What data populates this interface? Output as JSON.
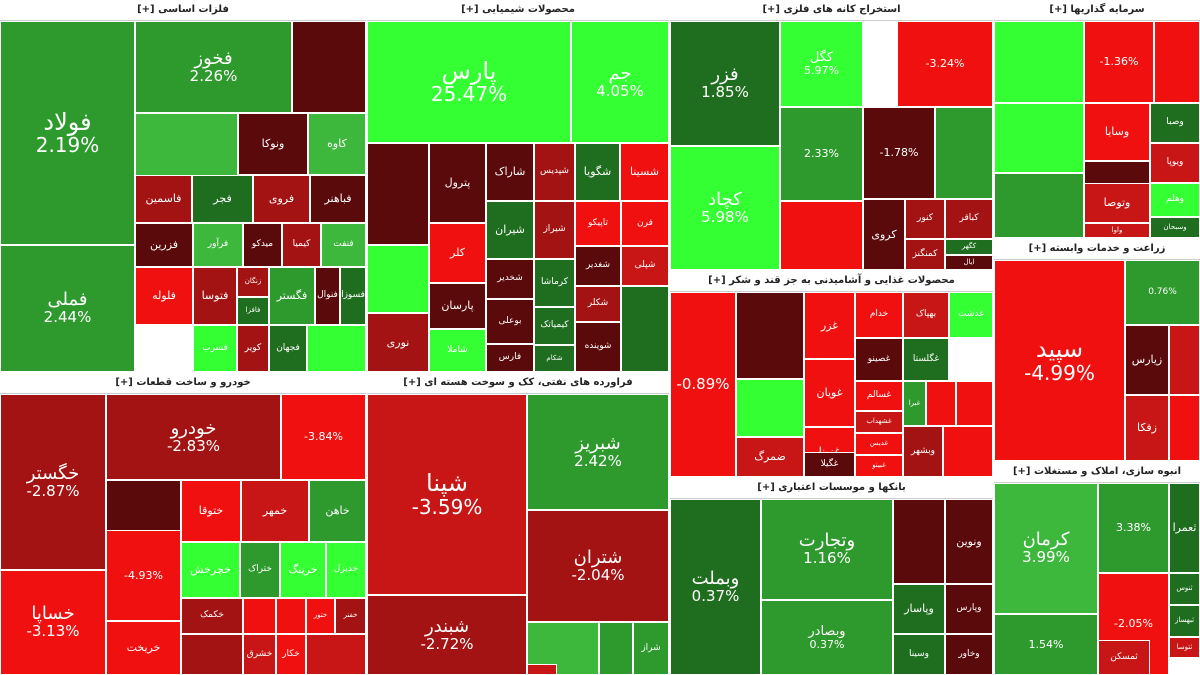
{
  "colors": {
    "dg": "#1f6e1f",
    "g": "#2e9a2e",
    "lg": "#3db83d",
    "bg": "#33ff33",
    "dr": "#5a0a0a",
    "r": "#a31313",
    "mr": "#c81616",
    "br": "#f01010",
    "background": "#ffffff",
    "title_text": "#222222"
  },
  "sectors": [
    {
      "title": "فلزات اساسی [+]",
      "tiles": [
        {
          "n": "فولاد",
          "p": "2.19%",
          "c": "g"
        },
        {
          "n": "فملی",
          "p": "2.44%",
          "c": "g"
        },
        {
          "n": "فخوز",
          "p": "2.26%",
          "c": "g"
        },
        {
          "n": "",
          "p": "",
          "c": "dr"
        },
        {
          "n": "",
          "p": "",
          "c": "lg"
        },
        {
          "n": "ونوکا",
          "p": "",
          "c": "dr"
        },
        {
          "n": "کاوه",
          "p": "",
          "c": "lg"
        },
        {
          "n": "فاسمین",
          "p": "",
          "c": "r"
        },
        {
          "n": "فجر",
          "p": "",
          "c": "dg"
        },
        {
          "n": "فروی",
          "p": "",
          "c": "r"
        },
        {
          "n": "فباهنر",
          "p": "",
          "c": "dr"
        },
        {
          "n": "فزرین",
          "p": "",
          "c": "dr"
        },
        {
          "n": "فرآور",
          "p": "",
          "c": "lg"
        },
        {
          "n": "میدکو",
          "p": "",
          "c": "dr"
        },
        {
          "n": "کیمیا",
          "p": "",
          "c": "r"
        },
        {
          "n": "فنفت",
          "p": "",
          "c": "lg"
        },
        {
          "n": "فلوله",
          "p": "",
          "c": "br"
        },
        {
          "n": "فتوسا",
          "p": "",
          "c": "r"
        },
        {
          "n": "زنگان",
          "p": "",
          "c": "r"
        },
        {
          "n": "فافزا",
          "p": "",
          "c": "dg"
        },
        {
          "n": "فگستر",
          "p": "",
          "c": "g"
        },
        {
          "n": "فنوال",
          "p": "",
          "c": "dr"
        },
        {
          "n": "فسوزا",
          "p": "",
          "c": "dg"
        },
        {
          "n": "فسرب",
          "p": "",
          "c": "bg"
        },
        {
          "n": "کویر",
          "p": "",
          "c": "r"
        },
        {
          "n": "فجهان",
          "p": "",
          "c": "dg"
        },
        {
          "n": "",
          "p": "",
          "c": "bg"
        }
      ]
    },
    {
      "title": "محصولات شیمیایی [+]",
      "tiles": [
        {
          "n": "پارس",
          "p": "25.47%",
          "c": "bg"
        },
        {
          "n": "جم",
          "p": "4.05%",
          "c": "bg"
        },
        {
          "n": "",
          "p": "",
          "c": "dr"
        },
        {
          "n": "پترول",
          "p": "",
          "c": "dr"
        },
        {
          "n": "شاراک",
          "p": "",
          "c": "dr"
        },
        {
          "n": "شپدیس",
          "p": "",
          "c": "r"
        },
        {
          "n": "شگویا",
          "p": "",
          "c": "dg"
        },
        {
          "n": "شسینا",
          "p": "",
          "c": "br"
        },
        {
          "n": "شیران",
          "p": "",
          "c": "dg"
        },
        {
          "n": "شیراز",
          "p": "",
          "c": "r"
        },
        {
          "n": "تاپیکو",
          "p": "",
          "c": "br"
        },
        {
          "n": "فرن",
          "p": "",
          "c": "br"
        },
        {
          "n": "",
          "p": "",
          "c": "bg"
        },
        {
          "n": "کلر",
          "p": "",
          "c": "br"
        },
        {
          "n": "شخدیر",
          "p": "",
          "c": "dr"
        },
        {
          "n": "کرماشا",
          "p": "",
          "c": "dg"
        },
        {
          "n": "شغدیر",
          "p": "",
          "c": "dr"
        },
        {
          "n": "شپلی",
          "p": "",
          "c": "mr"
        },
        {
          "n": "پارسان",
          "p": "",
          "c": "dr"
        },
        {
          "n": "بوعلی",
          "p": "",
          "c": "dr"
        },
        {
          "n": "کیمیاتک",
          "p": "",
          "c": "dg"
        },
        {
          "n": "شکلر",
          "p": "",
          "c": "r"
        },
        {
          "n": "نوری",
          "p": "",
          "c": "r"
        },
        {
          "n": "شاملا",
          "p": "",
          "c": "bg"
        },
        {
          "n": "فارس",
          "p": "",
          "c": "dr"
        },
        {
          "n": "شکام",
          "p": "",
          "c": "dg"
        },
        {
          "n": "شوینده",
          "p": "",
          "c": "dr"
        },
        {
          "n": "",
          "p": "",
          "c": "dg"
        }
      ]
    },
    {
      "title": "استخراج کانه های فلزی [+]",
      "tiles": [
        {
          "n": "فزر",
          "p": "1.85%",
          "c": "dg"
        },
        {
          "n": "کچاد",
          "p": "5.98%",
          "c": "bg"
        },
        {
          "n": "کگل",
          "p": "5.97%",
          "c": "bg"
        },
        {
          "n": "",
          "p": "-3.24%",
          "c": "br"
        },
        {
          "n": "",
          "p": "2.33%",
          "c": "g"
        },
        {
          "n": "",
          "p": "-1.78%",
          "c": "dr"
        },
        {
          "n": "",
          "p": "",
          "c": "g"
        },
        {
          "n": "",
          "p": "",
          "c": "br"
        },
        {
          "n": "کروی",
          "p": "",
          "c": "dr"
        },
        {
          "n": "کنور",
          "p": "",
          "c": "r"
        },
        {
          "n": "کباقر",
          "p": "",
          "c": "r"
        },
        {
          "n": "کگهر",
          "p": "",
          "c": "dg"
        },
        {
          "n": "کمنگنز",
          "p": "",
          "c": "r"
        },
        {
          "n": "ایال",
          "p": "",
          "c": "dr"
        }
      ]
    },
    {
      "title": "سرمایه گذاریها [+]",
      "tiles": [
        {
          "n": "",
          "p": "",
          "c": "bg"
        },
        {
          "n": "",
          "p": "-1.36%",
          "c": "br"
        },
        {
          "n": "",
          "p": "",
          "c": "br"
        },
        {
          "n": "وسایا",
          "p": "",
          "c": "br"
        },
        {
          "n": "وصبا",
          "p": "",
          "c": "dg"
        },
        {
          "n": "",
          "p": "",
          "c": "bg"
        },
        {
          "n": "ویوپا",
          "p": "",
          "c": "mr"
        },
        {
          "n": "",
          "p": "",
          "c": "dr"
        },
        {
          "n": "وتوصا",
          "p": "",
          "c": "mr"
        },
        {
          "n": "وهلم",
          "p": "",
          "c": "bg"
        },
        {
          "n": "",
          "p": "",
          "c": "g"
        },
        {
          "n": "وسبحان",
          "p": "",
          "c": "dg"
        },
        {
          "n": "واوا",
          "p": "",
          "c": "mr"
        }
      ]
    },
    {
      "title": "زراعت و خدمات وابسته [+]",
      "tiles": [
        {
          "n": "سپید",
          "p": "-4.99%",
          "c": "br"
        },
        {
          "n": "",
          "p": "0.76%",
          "c": "g"
        },
        {
          "n": "زیارس",
          "p": "",
          "c": "dr"
        },
        {
          "n": "",
          "p": "",
          "c": "mr"
        },
        {
          "n": "زفکا",
          "p": "",
          "c": "mr"
        },
        {
          "n": "",
          "p": "",
          "c": "br"
        }
      ]
    },
    {
      "title": "محصولات غذایی و آشامیدنی به جز قند و شکر [+]",
      "tiles": [
        {
          "n": "",
          "p": "-0.89%",
          "c": "br"
        },
        {
          "n": "",
          "p": "",
          "c": "dr"
        },
        {
          "n": "غزر",
          "p": "",
          "c": "br"
        },
        {
          "n": "خدام",
          "p": "",
          "c": "br"
        },
        {
          "n": "بهپاک",
          "p": "",
          "c": "mr"
        },
        {
          "n": "غدشت",
          "p": "",
          "c": "bg"
        },
        {
          "n": "",
          "p": "",
          "c": "bg"
        },
        {
          "n": "غویان",
          "p": "",
          "c": "br"
        },
        {
          "n": "غصینو",
          "p": "",
          "c": "dr"
        },
        {
          "n": "غگلستا",
          "p": "",
          "c": "dg"
        },
        {
          "n": "غسالم",
          "p": "",
          "c": "br"
        },
        {
          "n": "غبرا",
          "p": "",
          "c": "g"
        },
        {
          "n": "",
          "p": "",
          "c": "br"
        },
        {
          "n": "غزینا",
          "p": "",
          "c": "br"
        },
        {
          "n": "غشهداب",
          "p": "",
          "c": "mr"
        },
        {
          "n": "",
          "p": "",
          "c": "br"
        },
        {
          "n": "ضمرگ",
          "p": "",
          "c": "mr"
        },
        {
          "n": "غگیلا",
          "p": "",
          "c": "dr"
        },
        {
          "n": "غدیس",
          "p": "",
          "c": "br"
        },
        {
          "n": "غبینو",
          "p": "",
          "c": "br"
        },
        {
          "n": "وبشهر",
          "p": "",
          "c": "r"
        },
        {
          "n": "",
          "p": "",
          "c": "br"
        }
      ]
    },
    {
      "title": "خودرو و ساخت قطعات [+]",
      "tiles": [
        {
          "n": "خگستر",
          "p": "-2.87%",
          "c": "r"
        },
        {
          "n": "خساپا",
          "p": "-3.13%",
          "c": "br"
        },
        {
          "n": "خودرو",
          "p": "-2.83%",
          "c": "r"
        },
        {
          "n": "",
          "p": "-3.84%",
          "c": "br"
        },
        {
          "n": "",
          "p": "",
          "c": "dr"
        },
        {
          "n": "ختوقا",
          "p": "",
          "c": "br"
        },
        {
          "n": "خمهر",
          "p": "",
          "c": "mr"
        },
        {
          "n": "خاهن",
          "p": "",
          "c": "g"
        },
        {
          "n": "",
          "p": "-4.93%",
          "c": "br"
        },
        {
          "n": "خچرخش",
          "p": "",
          "c": "bg"
        },
        {
          "n": "ختراک",
          "p": "",
          "c": "g"
        },
        {
          "n": "خرینگ",
          "p": "",
          "c": "bg"
        },
        {
          "n": "خدیزل",
          "p": "",
          "c": "bg"
        },
        {
          "n": "خکمک",
          "p": "",
          "c": "r"
        },
        {
          "n": "",
          "p": "",
          "c": "br"
        },
        {
          "n": "",
          "p": "",
          "c": "br"
        },
        {
          "n": "ختور",
          "p": "",
          "c": "br"
        },
        {
          "n": "خفنر",
          "p": "",
          "c": "r"
        },
        {
          "n": "",
          "p": "",
          "c": "r"
        },
        {
          "n": "خریخت",
          "p": "",
          "c": "br"
        },
        {
          "n": "خشرق",
          "p": "",
          "c": "mr"
        },
        {
          "n": "خکار",
          "p": "",
          "c": "br"
        },
        {
          "n": "",
          "p": "",
          "c": "mr"
        }
      ]
    },
    {
      "title": "فراورده های نفتی، کک و سوخت هسته ای [+]",
      "tiles": [
        {
          "n": "شپنا",
          "p": "-3.59%",
          "c": "mr"
        },
        {
          "n": "شبندر",
          "p": "-2.72%",
          "c": "r"
        },
        {
          "n": "شبریز",
          "p": "2.42%",
          "c": "g"
        },
        {
          "n": "شتران",
          "p": "-2.04%",
          "c": "r"
        },
        {
          "n": "",
          "p": "",
          "c": "lg"
        },
        {
          "n": "",
          "p": "",
          "c": "g"
        },
        {
          "n": "شراز",
          "p": "",
          "c": "g"
        },
        {
          "n": "",
          "p": "",
          "c": "mr"
        }
      ]
    },
    {
      "title": "بانکها و موسسات اعتباری [+]",
      "tiles": [
        {
          "n": "وبملت",
          "p": "0.37%",
          "c": "dg"
        },
        {
          "n": "وتجارت",
          "p": "1.16%",
          "c": "g"
        },
        {
          "n": "وبصادر",
          "p": "0.37%",
          "c": "g"
        },
        {
          "n": "",
          "p": "",
          "c": "dr"
        },
        {
          "n": "ونوین",
          "p": "",
          "c": "dr"
        },
        {
          "n": "وپاسار",
          "p": "",
          "c": "dg"
        },
        {
          "n": "وپارس",
          "p": "",
          "c": "dr"
        },
        {
          "n": "وسینا",
          "p": "",
          "c": "dg"
        },
        {
          "n": "وخاور",
          "p": "",
          "c": "dr"
        }
      ]
    },
    {
      "title": "انبوه سازی، املاک و مستغلات [+]",
      "tiles": [
        {
          "n": "کرمان",
          "p": "3.99%",
          "c": "lg"
        },
        {
          "n": "",
          "p": "1.54%",
          "c": "g"
        },
        {
          "n": "",
          "p": "3.38%",
          "c": "g"
        },
        {
          "n": "",
          "p": "-2.05%",
          "c": "br"
        },
        {
          "n": "ثعمرا",
          "p": "",
          "c": "dg"
        },
        {
          "n": "ثنوس",
          "p": "",
          "c": "dg"
        },
        {
          "n": "ثبهساز",
          "p": "",
          "c": "dg"
        },
        {
          "n": "ثتوسا",
          "p": "",
          "c": "mr"
        },
        {
          "n": "ثمسکن",
          "p": "",
          "c": "mr"
        }
      ]
    }
  ]
}
